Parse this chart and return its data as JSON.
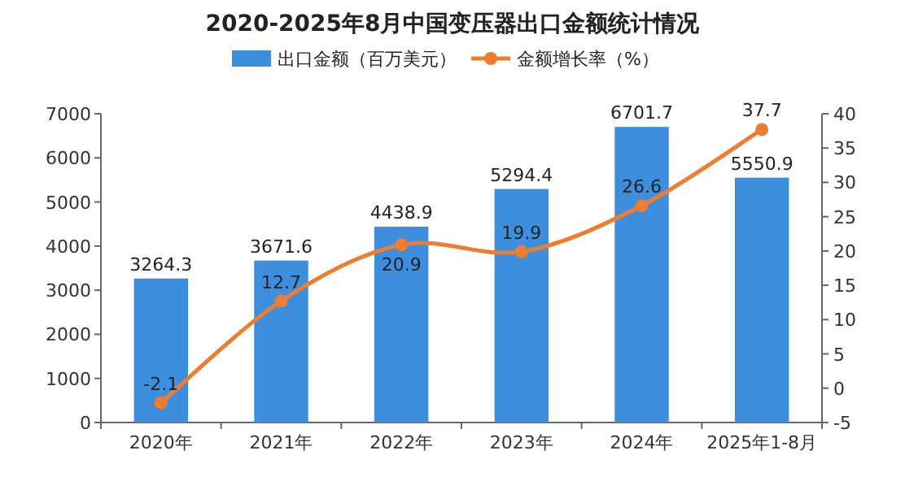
{
  "chart_data": {
    "type": "bar",
    "title": "2020-2025年8月中国变压器出口金额统计情况",
    "categories": [
      "2020年",
      "2021年",
      "2022年",
      "2023年",
      "2024年",
      "2025年1-8月"
    ],
    "series": [
      {
        "name": "出口金额（百万美元）",
        "color": "#3d8fde",
        "values": [
          3264.3,
          3671.6,
          4438.9,
          5294.4,
          6701.7,
          5550.9
        ]
      },
      {
        "name": "金额增长率（%）",
        "type": "line",
        "axis": "y2",
        "color": "#ed7d31",
        "values": [
          -2.1,
          12.7,
          20.9,
          19.9,
          26.6,
          37.7
        ]
      }
    ],
    "ylim": [
      0,
      7000
    ],
    "yticks": [
      0,
      1000,
      2000,
      3000,
      4000,
      5000,
      6000,
      7000
    ],
    "y2lim": [
      -5,
      40
    ],
    "y2ticks": [
      -5,
      0,
      5,
      10,
      15,
      20,
      25,
      30,
      35,
      40
    ],
    "data_labels": true,
    "legend": "top",
    "marker": "circle",
    "grid": false
  }
}
